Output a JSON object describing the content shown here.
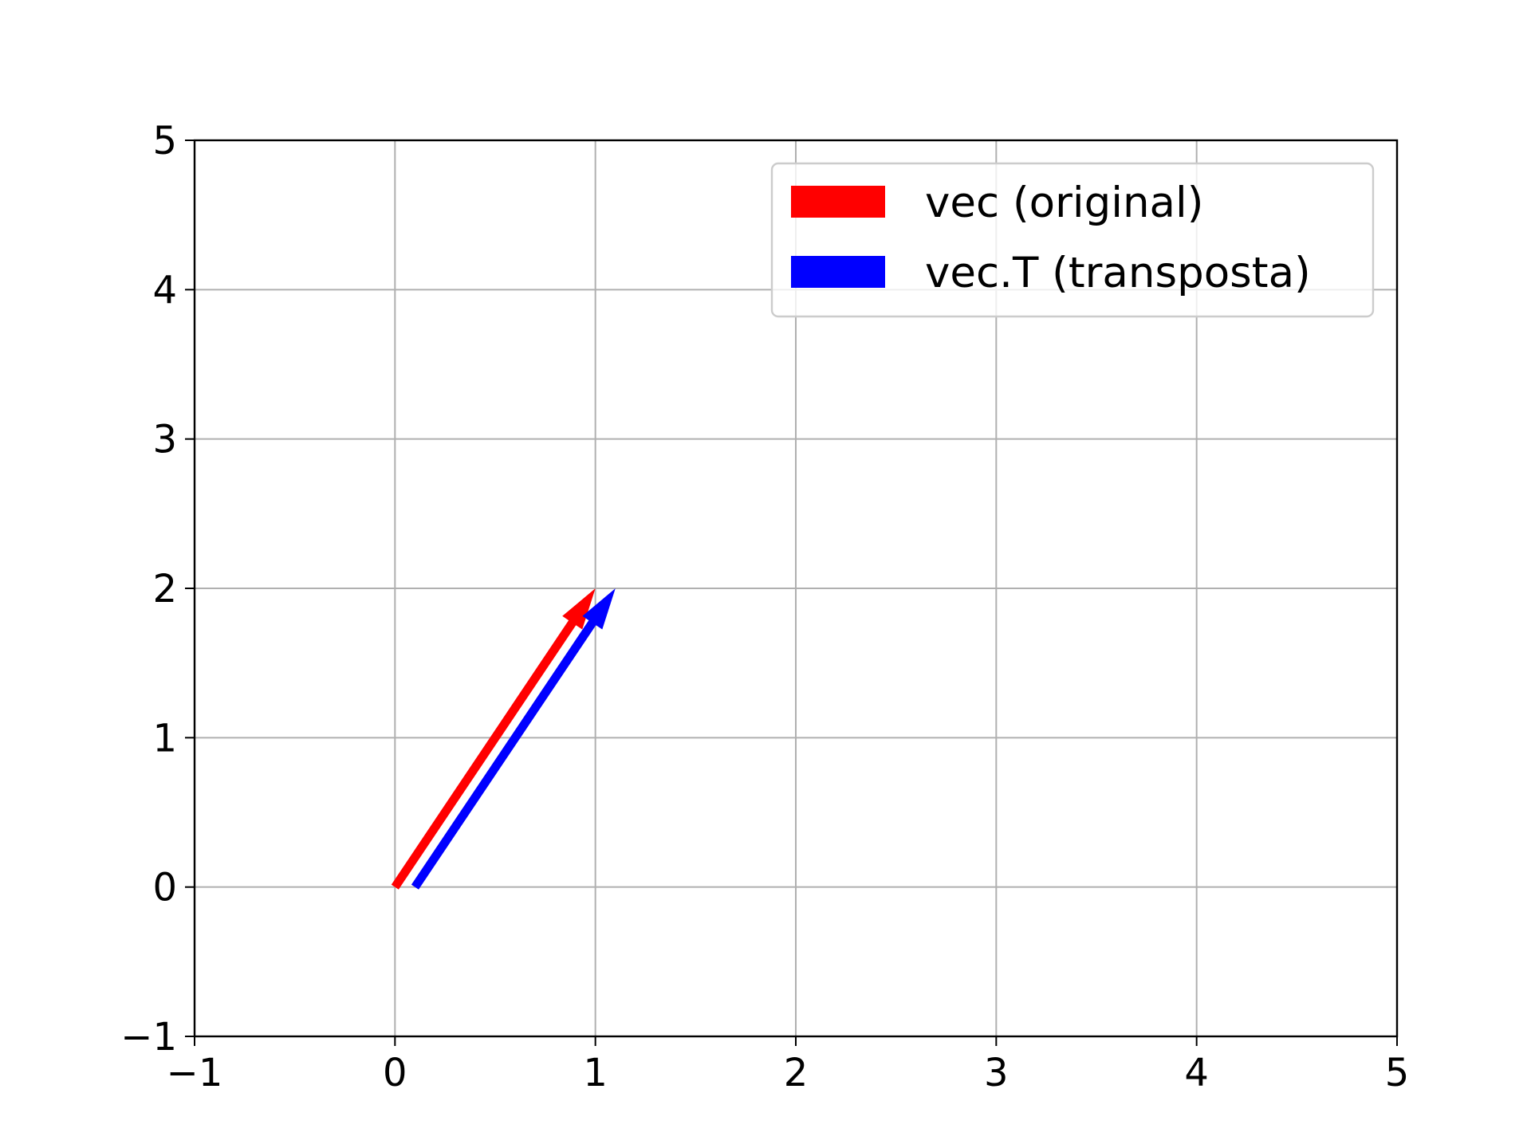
{
  "chart_data": {
    "type": "quiver",
    "title": "",
    "xlabel": "",
    "ylabel": "",
    "xlim": [
      -1,
      5
    ],
    "ylim": [
      -1,
      5
    ],
    "xticks": [
      -1,
      0,
      1,
      2,
      3,
      4,
      5
    ],
    "yticks": [
      -1,
      0,
      1,
      2,
      3,
      4,
      5
    ],
    "xtick_labels": [
      "−1",
      "0",
      "1",
      "2",
      "3",
      "4",
      "5"
    ],
    "ytick_labels": [
      "−1",
      "0",
      "1",
      "2",
      "3",
      "4",
      "5"
    ],
    "grid": true,
    "legend_position": "top-right",
    "series": [
      {
        "name": "vec (original)",
        "color": "#ff0000",
        "origin": [
          0,
          0
        ],
        "vector": [
          1,
          2
        ]
      },
      {
        "name": "vec.T (transposta)",
        "color": "#0000ff",
        "origin": [
          0.1,
          0
        ],
        "vector": [
          1,
          2
        ]
      }
    ]
  }
}
